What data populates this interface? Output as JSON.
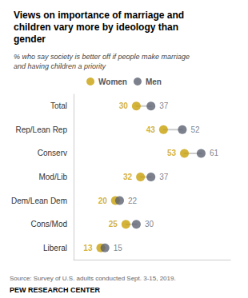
{
  "chart_data": {
    "type": "dumbbell",
    "title": "Views on importance of marriage and\nchildren vary more by ideology than\ngender",
    "subtitle": "% who say society is better off if people make marriage\nand having children a priority",
    "annotations": [
      "Source: Survey of U.S. adults conducted Sept. 3-15, 2019.",
      "PEW RESEARCH CENTER"
    ],
    "categories": [
      "Total",
      "Rep/Lean Rep",
      "Conserv",
      "Mod/Lib",
      "Dem/Lean Dem",
      "Cons/Mod",
      "Liberal"
    ],
    "series": [
      {
        "name": "Women",
        "color": "#C8A008",
        "values": [
          30,
          43,
          53,
          32,
          20,
          25,
          13
        ]
      },
      {
        "name": "Men",
        "color": "#5B6270",
        "values": [
          37,
          52,
          61,
          37,
          22,
          30,
          15
        ]
      }
    ],
    "xlim": [
      0,
      75
    ],
    "tick_labels": false,
    "grid": false,
    "legend": "top",
    "data_labels": true
  }
}
